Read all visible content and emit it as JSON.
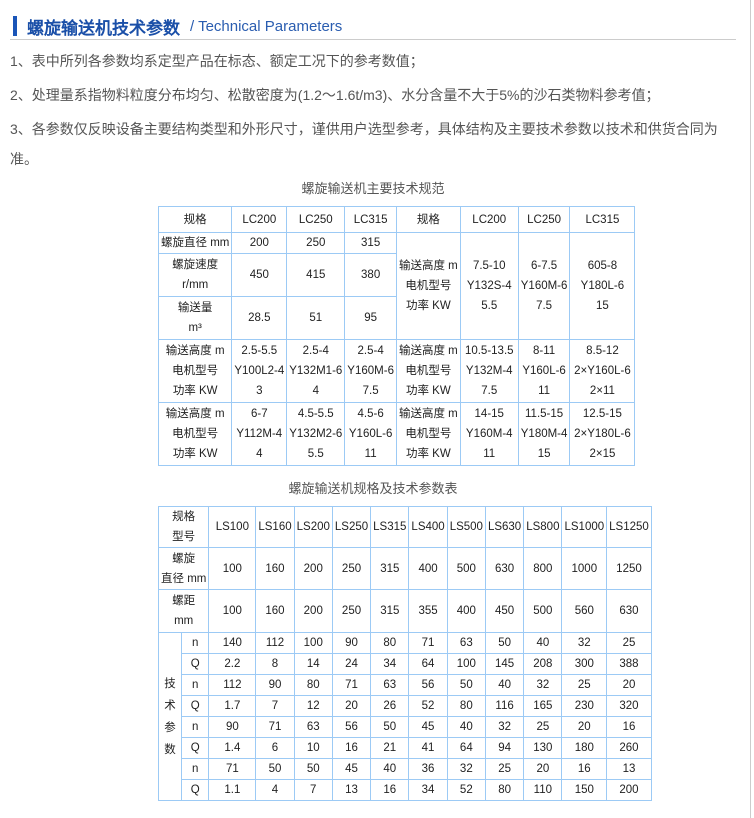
{
  "header": {
    "title_zh": "螺旋输送机技术参数",
    "title_en": "/ Technical Parameters",
    "accent": "#1a55b8"
  },
  "notes": [
    "1、表中所列各参数均系定型产品在标态、额定工况下的参考数值；",
    "2、处理量系指物料粒度分布均匀、松散密度为(1.2～1.6t/m3)、水分含量不大于5%的沙石类物料参考值；",
    "3、各参数仅反映设备主要结构类型和外形尺寸，谨供用户选型参考，具体结构及主要技术参数以技术和供货合同为准。"
  ],
  "table1": {
    "caption": "螺旋输送机主要技术规范",
    "header": [
      "规格",
      "LC200",
      "LC250",
      "LC315",
      "规格",
      "LC200",
      "LC250",
      "LC315"
    ],
    "left_rows": [
      [
        "螺旋直径 mm",
        "200",
        "250",
        "315"
      ],
      [
        "螺旋速度\nr/mm",
        "450",
        "415",
        "380"
      ],
      [
        "输送量\nm³",
        "28.5",
        "51",
        "95"
      ]
    ],
    "right_block": [
      "输送高度 m\n电机型号\n功率 KW",
      "7.5-10\nY132S-4\n5.5",
      "6-7.5\nY160M-6\n7.5",
      "605-8\nY180L-6\n15"
    ],
    "lower_rows": [
      [
        "输送高度 m\n电机型号\n功率 KW",
        "2.5-5.5\nY100L2-4\n3",
        "2.5-4\nY132M1-6\n4",
        "2.5-4\nY160M-6\n7.5",
        "输送高度 m\n电机型号\n功率 KW",
        "10.5-13.5\nY132M-4\n7.5",
        "8-11\nY160L-6\n11",
        "8.5-12\n2×Y160L-6\n2×11"
      ],
      [
        "输送高度 m\n电机型号\n功率 KW",
        "6-7\nY112M-4\n4",
        "4.5-5.5\nY132M2-6\n5.5",
        "4.5-6\nY160L-6\n11",
        "输送高度 m\n电机型号\n功率 KW",
        "14-15\nY160M-4\n11",
        "11.5-15\nY180M-4\n15",
        "12.5-15\n2×Y180L-6\n2×15"
      ]
    ]
  },
  "table2": {
    "caption": "螺旋输送机规格及技术参数表",
    "header_label": "规格\n型号",
    "models": [
      "LS100",
      "LS160",
      "LS200",
      "LS250",
      "LS315",
      "LS400",
      "LS500",
      "LS630",
      "LS800",
      "LS1000",
      "LS1250"
    ],
    "diameter_label": "螺旋\n直径 mm",
    "diameter": [
      "100",
      "160",
      "200",
      "250",
      "315",
      "400",
      "500",
      "630",
      "800",
      "1000",
      "1250"
    ],
    "pitch_label": "螺距\nmm",
    "pitch": [
      "100",
      "160",
      "200",
      "250",
      "315",
      "355",
      "400",
      "450",
      "500",
      "560",
      "630"
    ],
    "tech_label": "技\n术\n参\n数",
    "tech_rows": [
      {
        "k": "n",
        "v": [
          "140",
          "112",
          "100",
          "90",
          "80",
          "71",
          "63",
          "50",
          "40",
          "32",
          "25"
        ]
      },
      {
        "k": "Q",
        "v": [
          "2.2",
          "8",
          "14",
          "24",
          "34",
          "64",
          "100",
          "145",
          "208",
          "300",
          "388"
        ]
      },
      {
        "k": "n",
        "v": [
          "112",
          "90",
          "80",
          "71",
          "63",
          "56",
          "50",
          "40",
          "32",
          "25",
          "20"
        ]
      },
      {
        "k": "Q",
        "v": [
          "1.7",
          "7",
          "12",
          "20",
          "26",
          "52",
          "80",
          "116",
          "165",
          "230",
          "320"
        ]
      },
      {
        "k": "n",
        "v": [
          "90",
          "71",
          "63",
          "56",
          "50",
          "45",
          "40",
          "32",
          "25",
          "20",
          "16"
        ]
      },
      {
        "k": "Q",
        "v": [
          "1.4",
          "6",
          "10",
          "16",
          "21",
          "41",
          "64",
          "94",
          "130",
          "180",
          "260"
        ]
      },
      {
        "k": "n",
        "v": [
          "71",
          "50",
          "50",
          "45",
          "40",
          "36",
          "32",
          "25",
          "20",
          "16",
          "13"
        ]
      },
      {
        "k": "Q",
        "v": [
          "1.1",
          "4",
          "7",
          "13",
          "16",
          "34",
          "52",
          "80",
          "110",
          "150",
          "200"
        ]
      }
    ]
  }
}
